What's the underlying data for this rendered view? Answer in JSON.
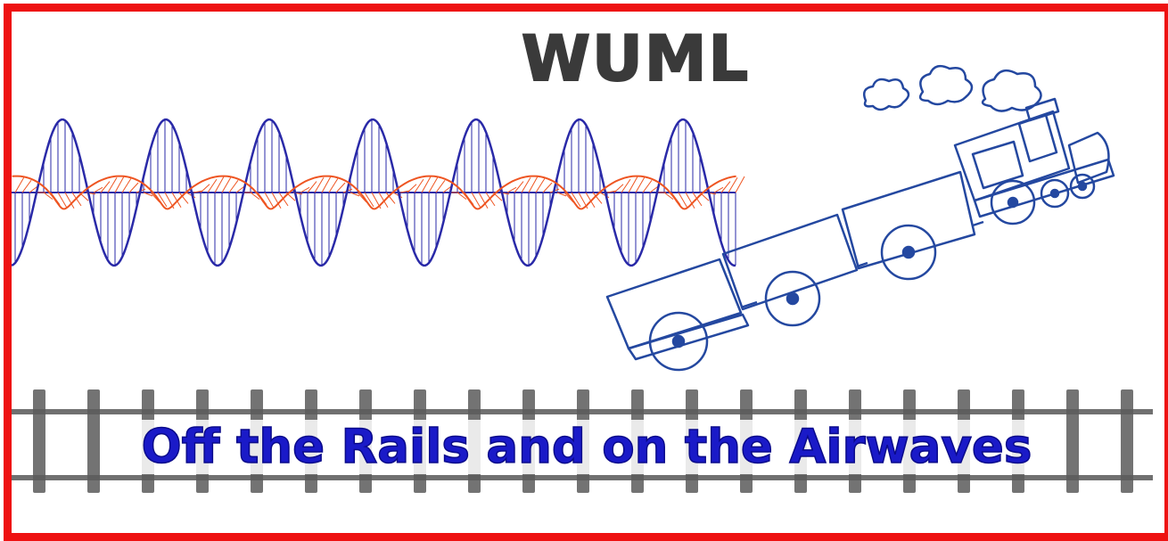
{
  "banner": {
    "title": "WUML",
    "subtitle": "Off the Rails and on the Airwaves"
  },
  "colors": {
    "frame": "#ee1111",
    "title": "#3a3a3a",
    "subtitle": "#1a1ac8",
    "wave_blue": "#2a2aa8",
    "wave_orange": "#ee5522",
    "train": "#2448a0",
    "rails": "#666666"
  },
  "icons": [
    "em-wave-illustration",
    "derailed-train-illustration",
    "smoke-cloud-icon",
    "railroad-track-illustration"
  ]
}
